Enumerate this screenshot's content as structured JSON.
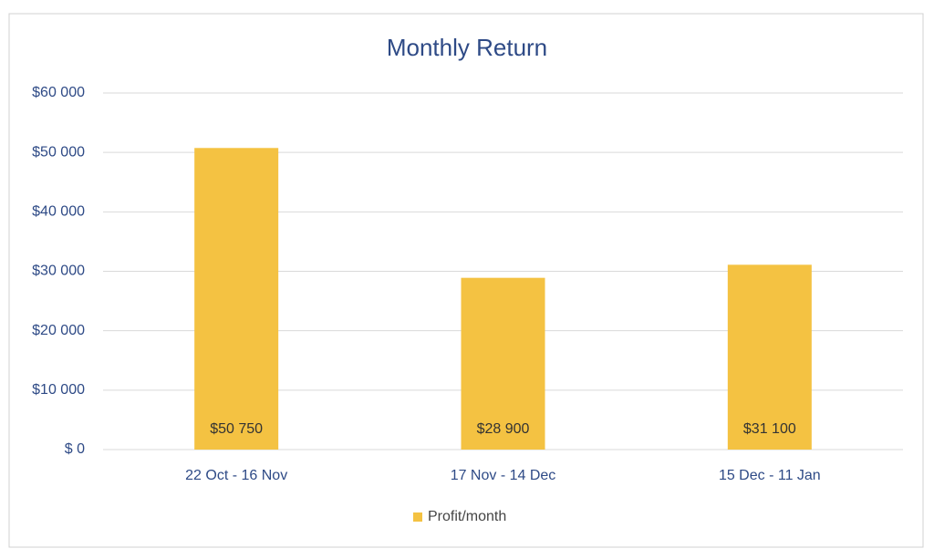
{
  "chart_data": {
    "type": "bar",
    "title": "Monthly Return",
    "categories": [
      "22 Oct - 16 Nov",
      "17 Nov - 14 Dec",
      "15 Dec - 11 Jan"
    ],
    "series": [
      {
        "name": "Profit/month",
        "color": "#f4c242",
        "values": [
          50750,
          28900,
          31100
        ],
        "value_labels": [
          "$50 750",
          "$28 900",
          "$31 100"
        ]
      }
    ],
    "ylim": [
      0,
      60000
    ],
    "yticks": [
      {
        "value": 0,
        "label": "$ 0"
      },
      {
        "value": 10000,
        "label": "$10 000"
      },
      {
        "value": 20000,
        "label": "$20 000"
      },
      {
        "value": 30000,
        "label": "$30 000"
      },
      {
        "value": 40000,
        "label": "$40 000"
      },
      {
        "value": 50000,
        "label": "$50 000"
      },
      {
        "value": 60000,
        "label": "$60 000"
      }
    ],
    "grid": true,
    "legend": "bottom"
  }
}
